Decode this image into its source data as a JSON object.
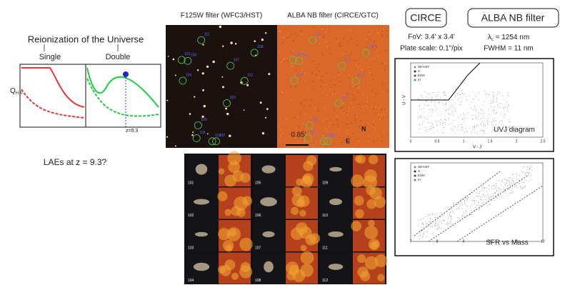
{
  "left": {
    "title": "Reionization of the Universe",
    "single": "Single",
    "double": "Double",
    "ylabel": "Q",
    "ylabel_sub": "H II",
    "marker": "z=9.3",
    "caption": "LAEs at  z = 9.3?"
  },
  "middle": {
    "hst_title": "F125W filter (WFC3/HST)",
    "nb_title": "ALBA NB filter (CIRCE/GTC)",
    "scale": "0.85'",
    "north": "N",
    "east": "E",
    "sources": [
      "101",
      "102",
      "103",
      "104",
      "105",
      "106",
      "107",
      "108",
      "109",
      "110",
      "111",
      "112"
    ],
    "thumbs": [
      "101",
      "105",
      "109",
      "102",
      "106",
      "110",
      "103",
      "107",
      "111",
      "104",
      "108",
      "112"
    ]
  },
  "right": {
    "instrument": "CIRCE",
    "filter": "ALBA NB filter",
    "fov": "FoV: 3.4' x 3.4'",
    "plate": "Plate scale: 0.1\"/pix",
    "lambda": "λ",
    "lambda_sub": "c",
    "lambda_val": " = 1254 nm",
    "fwhm": "FWHM = 11 nm",
    "uvj": {
      "title": "UVJ diagram",
      "xlabel": "V - J",
      "ylabel": "U - V",
      "legend": [
        "3D-HST",
        "S",
        "E/S0",
        "Irr"
      ],
      "xticks": [
        "0",
        "0.5",
        "1",
        "1.5",
        "2",
        "2.5"
      ]
    },
    "sfr": {
      "title": "SFR  vs Mass",
      "legend": [
        "3D-HST",
        "S",
        "E/S0",
        "Irr"
      ],
      "xticks": [
        "7",
        "8",
        "9",
        "10",
        "11",
        "12"
      ]
    }
  }
}
